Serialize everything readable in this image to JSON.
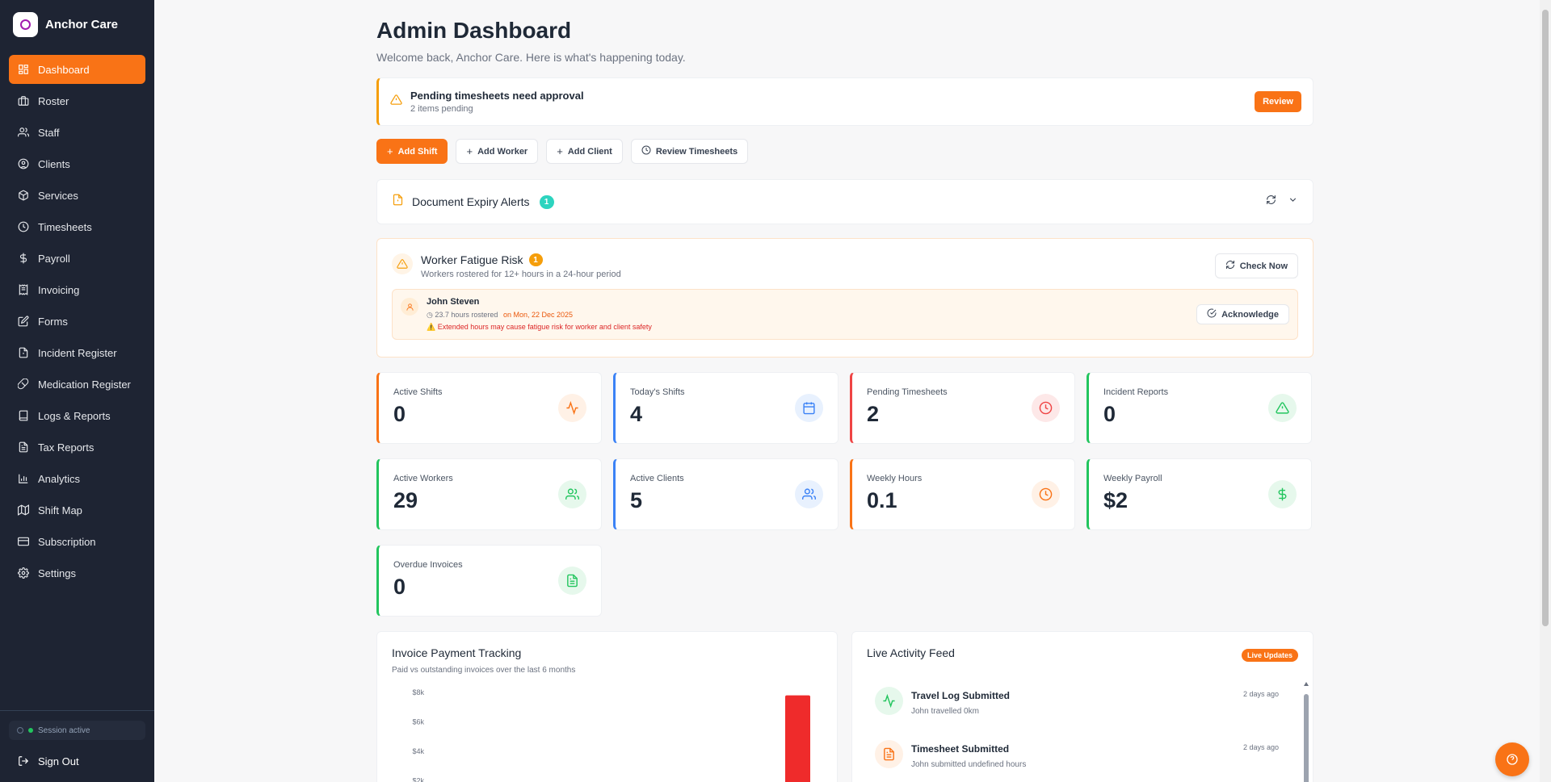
{
  "brand": {
    "name": "Anchor Care"
  },
  "sidebar": {
    "items": [
      {
        "label": "Dashboard",
        "icon": "grid-icon",
        "active": true
      },
      {
        "label": "Roster",
        "icon": "briefcase-icon"
      },
      {
        "label": "Staff",
        "icon": "users-icon"
      },
      {
        "label": "Clients",
        "icon": "user-circle-icon"
      },
      {
        "label": "Services",
        "icon": "package-icon"
      },
      {
        "label": "Timesheets",
        "icon": "clock-icon"
      },
      {
        "label": "Payroll",
        "icon": "dollar-icon"
      },
      {
        "label": "Invoicing",
        "icon": "receipt-icon"
      },
      {
        "label": "Forms",
        "icon": "edit-icon"
      },
      {
        "label": "Incident Register",
        "icon": "file-alert-icon"
      },
      {
        "label": "Medication Register",
        "icon": "pill-icon"
      },
      {
        "label": "Logs & Reports",
        "icon": "book-icon"
      },
      {
        "label": "Tax Reports",
        "icon": "file-text-icon"
      },
      {
        "label": "Analytics",
        "icon": "bar-chart-icon"
      },
      {
        "label": "Shift Map",
        "icon": "map-icon"
      },
      {
        "label": "Subscription",
        "icon": "credit-card-icon"
      },
      {
        "label": "Settings",
        "icon": "gear-icon"
      }
    ],
    "session": "Session active",
    "sign_out": "Sign Out"
  },
  "header": {
    "title": "Admin Dashboard",
    "subtitle": "Welcome back, Anchor Care. Here is what's happening today."
  },
  "pending": {
    "title": "Pending timesheets need approval",
    "subtitle": "2 items pending",
    "button": "Review"
  },
  "actions": {
    "add_shift": "Add Shift",
    "add_worker": "Add Worker",
    "add_client": "Add Client",
    "review_timesheets": "Review Timesheets"
  },
  "doc_alerts": {
    "title": "Document Expiry Alerts",
    "count": "1"
  },
  "fatigue": {
    "title": "Worker Fatigue Risk",
    "count": "1",
    "subtitle": "Workers rostered for 12+ hours in a 24-hour period",
    "check_button": "Check Now",
    "worker": {
      "name": "John Steven",
      "hours": "23.7 hours rostered",
      "date": "on Mon, 22 Dec 2025",
      "warning": "Extended hours may cause fatigue risk for worker and client safety",
      "ack_button": "Acknowledge"
    }
  },
  "stats": [
    {
      "label": "Active Shifts",
      "value": "0",
      "color": "#f97316",
      "bg": "#fff1e6",
      "icon": "activity-icon"
    },
    {
      "label": "Today's Shifts",
      "value": "4",
      "color": "#3b82f6",
      "bg": "#e8f1fe",
      "icon": "calendar-icon"
    },
    {
      "label": "Pending Timesheets",
      "value": "2",
      "color": "#ef4444",
      "bg": "#fde8e8",
      "icon": "clock-icon"
    },
    {
      "label": "Incident Reports",
      "value": "0",
      "color": "#22c55e",
      "bg": "#e6f8ec",
      "icon": "alert-triangle-icon"
    },
    {
      "label": "Active Workers",
      "value": "29",
      "color": "#22c55e",
      "bg": "#e6f8ec",
      "icon": "users-icon"
    },
    {
      "label": "Active Clients",
      "value": "5",
      "color": "#3b82f6",
      "bg": "#e8f1fe",
      "icon": "users-icon"
    },
    {
      "label": "Weekly Hours",
      "value": "0.1",
      "color": "#f97316",
      "bg": "#fff1e6",
      "icon": "clock-icon"
    },
    {
      "label": "Weekly Payroll",
      "value": "$2",
      "color": "#22c55e",
      "bg": "#e6f8ec",
      "icon": "dollar-icon"
    },
    {
      "label": "Overdue Invoices",
      "value": "0",
      "color": "#22c55e",
      "bg": "#e6f8ec",
      "icon": "file-text-icon"
    }
  ],
  "invoice_panel": {
    "title": "Invoice Payment Tracking",
    "subtitle": "Paid vs outstanding invoices over the last 6 months"
  },
  "chart_data": {
    "type": "bar",
    "y_ticks": [
      "$8k",
      "$6k",
      "$4k",
      "$2k"
    ],
    "ylim": [
      0,
      8000
    ],
    "series": [
      {
        "values": [
          7800
        ],
        "color": "#ef2b2b"
      }
    ],
    "note_visible_portion": "chart is cropped at bottom of viewport"
  },
  "feed": {
    "title": "Live Activity Feed",
    "badge": "Live Updates",
    "items": [
      {
        "title": "Travel Log Submitted",
        "desc": "John travelled 0km",
        "time": "2 days ago",
        "icon": "activity-icon",
        "color": "#22c55e",
        "bg": "#e6f8ec"
      },
      {
        "title": "Timesheet Submitted",
        "desc": "John submitted undefined hours",
        "time": "2 days ago",
        "icon": "file-text-icon",
        "color": "#f97316",
        "bg": "#fff1e6"
      }
    ]
  }
}
